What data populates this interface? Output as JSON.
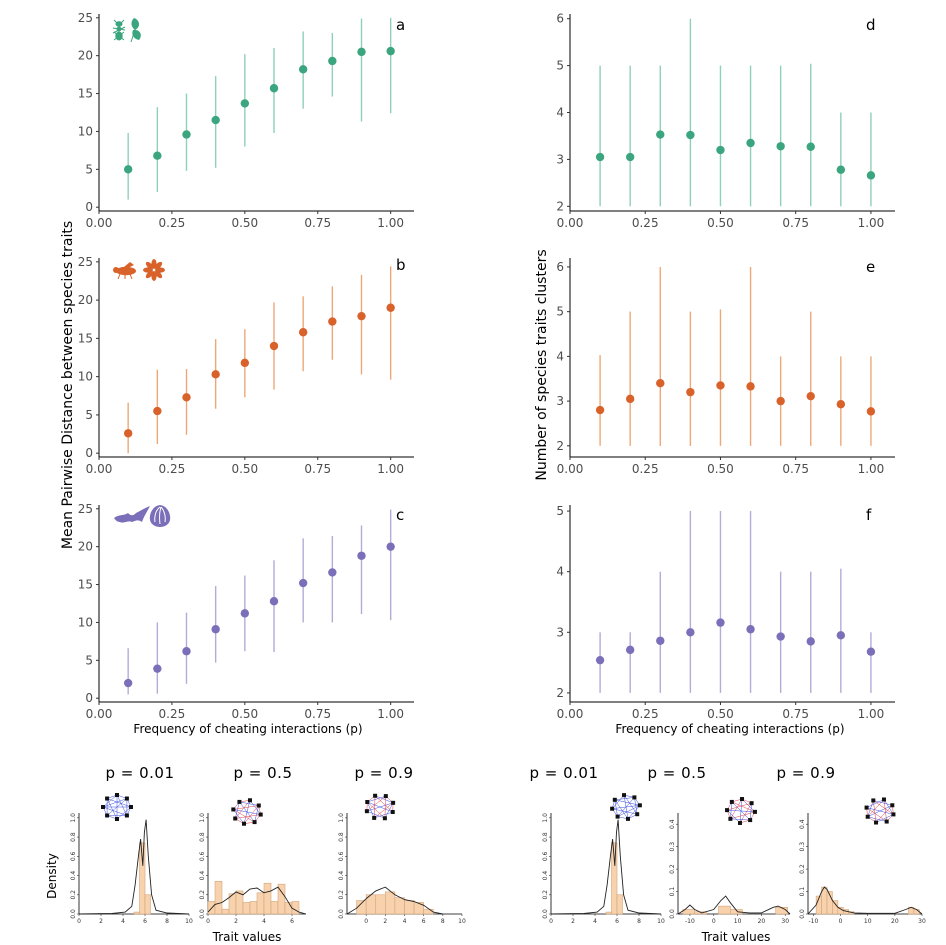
{
  "colors": {
    "green": "#3aa57e",
    "orange": "#d9622b",
    "purple": "#7b6fb9",
    "green_bar": "#8fd0b8",
    "orange_bar": "#eea878",
    "purple_bar": "#b3abd8",
    "hist_fill": "#f8d2ad",
    "hist_stroke": "#d2a57c"
  },
  "labels": {
    "y_left": "Mean Pairwise Distance between species traits",
    "y_right": "Number of species traits clusters",
    "x_left": "Frequency of cheating interactions (p)",
    "x_right": "Frequency of cheating interactions (p)",
    "density": "Density",
    "trait_left": "Trait values",
    "trait_right": "Trait values"
  },
  "icons": [
    "ant-icon",
    "leaf-icon",
    "bee-icon",
    "flower-icon",
    "bat-icon",
    "fig-icon"
  ],
  "chart_data": [
    {
      "type": "scatter",
      "panel": "a",
      "color": "green",
      "x": [
        0.1,
        0.2,
        0.3,
        0.4,
        0.5,
        0.6,
        0.7,
        0.8,
        0.9,
        1.0
      ],
      "y": [
        5.0,
        6.8,
        9.6,
        11.5,
        13.7,
        15.7,
        18.2,
        19.3,
        20.5,
        20.6
      ],
      "lo": [
        1.0,
        2.0,
        4.8,
        5.2,
        8.0,
        9.8,
        13.0,
        14.6,
        11.3,
        12.4
      ],
      "hi": [
        9.8,
        13.2,
        15.0,
        17.3,
        20.2,
        21.0,
        23.2,
        23.0,
        24.9,
        25.0
      ],
      "xlim": [
        0,
        1.08
      ],
      "ylim": [
        -0.5,
        25.5
      ],
      "xticks": [
        "0.00",
        "0.25",
        "0.50",
        "0.75",
        "1.00"
      ],
      "yticks": [
        "0",
        "5",
        "10",
        "15",
        "20",
        "25"
      ]
    },
    {
      "type": "scatter",
      "panel": "d",
      "color": "green",
      "x": [
        0.1,
        0.2,
        0.3,
        0.4,
        0.5,
        0.6,
        0.7,
        0.8,
        0.9,
        1.0
      ],
      "y": [
        3.05,
        3.05,
        3.53,
        3.52,
        3.2,
        3.35,
        3.28,
        3.27,
        2.78,
        2.66
      ],
      "lo": [
        2,
        2,
        2,
        2,
        2,
        2,
        2,
        2,
        2,
        2
      ],
      "hi": [
        5,
        5,
        5,
        6,
        5,
        5,
        5,
        5.04,
        4,
        4
      ],
      "xlim": [
        0,
        1.08
      ],
      "ylim": [
        1.9,
        6.1
      ],
      "xticks": [
        "0.00",
        "0.25",
        "0.50",
        "0.75",
        "1.00"
      ],
      "yticks": [
        "2",
        "3",
        "4",
        "5",
        "6"
      ]
    },
    {
      "type": "scatter",
      "panel": "b",
      "color": "orange",
      "x": [
        0.1,
        0.2,
        0.3,
        0.4,
        0.5,
        0.6,
        0.7,
        0.8,
        0.9,
        1.0
      ],
      "y": [
        2.6,
        5.5,
        7.3,
        10.3,
        11.8,
        14.0,
        15.8,
        17.2,
        17.9,
        19.0
      ],
      "lo": [
        0.0,
        1.2,
        2.4,
        5.8,
        7.3,
        8.3,
        10.7,
        12.2,
        10.3,
        9.6
      ],
      "hi": [
        6.6,
        10.9,
        11.0,
        14.9,
        16.2,
        19.7,
        20.5,
        21.8,
        23.3,
        24.4
      ],
      "xlim": [
        0,
        1.08
      ],
      "ylim": [
        -0.5,
        25.5
      ],
      "xticks": [
        "0.00",
        "0.25",
        "0.50",
        "0.75",
        "1.00"
      ],
      "yticks": [
        "0",
        "5",
        "10",
        "15",
        "20",
        "25"
      ]
    },
    {
      "type": "scatter",
      "panel": "e",
      "color": "orange",
      "x": [
        0.1,
        0.2,
        0.3,
        0.4,
        0.5,
        0.6,
        0.7,
        0.8,
        0.9,
        1.0
      ],
      "y": [
        2.8,
        3.05,
        3.4,
        3.2,
        3.35,
        3.33,
        3.0,
        3.11,
        2.93,
        2.77
      ],
      "lo": [
        2,
        2,
        2,
        2,
        2,
        2,
        2,
        2,
        2,
        2
      ],
      "hi": [
        4.03,
        5,
        6,
        5,
        5.05,
        6,
        4,
        5,
        4,
        4
      ],
      "xlim": [
        0,
        1.08
      ],
      "ylim": [
        1.75,
        6.2
      ],
      "xticks": [
        "0.00",
        "0.25",
        "0.50",
        "0.75",
        "1.00"
      ],
      "yticks": [
        "2",
        "3",
        "4",
        "5",
        "6"
      ]
    },
    {
      "type": "scatter",
      "panel": "c",
      "color": "purple",
      "x": [
        0.1,
        0.2,
        0.3,
        0.4,
        0.5,
        0.6,
        0.7,
        0.8,
        0.9,
        1.0
      ],
      "y": [
        2.0,
        3.9,
        6.2,
        9.1,
        11.2,
        12.8,
        15.2,
        16.6,
        18.8,
        20.0
      ],
      "lo": [
        0.5,
        0.6,
        1.9,
        4.7,
        6.2,
        6.1,
        10.0,
        10.0,
        11.1,
        10.3
      ],
      "hi": [
        6.6,
        10.0,
        11.3,
        14.8,
        16.2,
        18.2,
        21.1,
        21.4,
        22.8,
        24.9
      ],
      "xlim": [
        0,
        1.08
      ],
      "ylim": [
        -0.5,
        25.5
      ],
      "xticks": [
        "0.00",
        "0.25",
        "0.50",
        "0.75",
        "1.00"
      ],
      "yticks": [
        "0",
        "5",
        "10",
        "15",
        "20",
        "25"
      ]
    },
    {
      "type": "scatter",
      "panel": "f",
      "color": "purple",
      "x": [
        0.1,
        0.2,
        0.3,
        0.4,
        0.5,
        0.6,
        0.7,
        0.8,
        0.9,
        1.0
      ],
      "y": [
        2.54,
        2.71,
        2.86,
        3.0,
        3.16,
        3.05,
        2.93,
        2.85,
        2.95,
        2.68
      ],
      "lo": [
        2,
        2,
        2,
        2,
        2,
        2,
        2,
        2,
        2,
        2
      ],
      "hi": [
        3,
        3,
        4,
        5,
        5,
        5,
        4,
        4,
        4.05,
        3
      ],
      "xlim": [
        0,
        1.08
      ],
      "ylim": [
        1.85,
        5.1
      ],
      "xticks": [
        "0.00",
        "0.25",
        "0.50",
        "0.75",
        "1.00"
      ],
      "yticks": [
        "2",
        "3",
        "4",
        "5"
      ]
    },
    {
      "type": "bar",
      "title": "p = 0.01",
      "group": "left",
      "xlim": [
        0,
        10
      ],
      "ylim": [
        0,
        1.05
      ],
      "xticks": [
        "0",
        "2",
        "4",
        "6",
        "8",
        "10"
      ],
      "yticks": [
        "0.0",
        "0.2",
        "0.4",
        "0.6",
        "0.8",
        "1.0"
      ],
      "bins": [
        5.0,
        5.5,
        6.0
      ],
      "binwidth": 0.5,
      "values": [
        0.02,
        0.74,
        0.2
      ],
      "curve_x": [
        0,
        3,
        4.2,
        4.8,
        5.1,
        5.4,
        5.6,
        5.8,
        5.95,
        6.1,
        6.3,
        6.6,
        7,
        8,
        10
      ],
      "curve_y": [
        0,
        0.005,
        0.02,
        0.08,
        0.3,
        0.6,
        0.78,
        0.5,
        0.85,
        0.98,
        0.6,
        0.2,
        0.04,
        0.01,
        0
      ]
    },
    {
      "type": "bar",
      "title": "p = 0.5",
      "group": "left",
      "xlim": [
        0,
        7
      ],
      "ylim": [
        0,
        1.05
      ],
      "xticks": [
        "0",
        "2",
        "4",
        "6"
      ],
      "yticks": [
        "0.0",
        "0.2",
        "0.4",
        "0.6",
        "0.8",
        "1.0"
      ],
      "bins": [
        0,
        0.5,
        1,
        1.5,
        2,
        2.5,
        3,
        3.5,
        4,
        4.5,
        5,
        5.5,
        6,
        6.5
      ],
      "binwidth": 0.5,
      "values": [
        0.13,
        0.34,
        0.05,
        0.21,
        0.24,
        0.12,
        0.13,
        0.22,
        0.32,
        0.13,
        0.31,
        0.12,
        0.13,
        0
      ],
      "curve_x": [
        0,
        0.5,
        1,
        1.5,
        2,
        2.5,
        3,
        3.5,
        4,
        4.5,
        5,
        5.5,
        6,
        6.5,
        7
      ],
      "curve_y": [
        0.02,
        0.1,
        0.12,
        0.17,
        0.23,
        0.2,
        0.26,
        0.27,
        0.22,
        0.24,
        0.28,
        0.18,
        0.06,
        0.02,
        0
      ]
    },
    {
      "type": "bar",
      "title": "p = 0.9",
      "group": "left",
      "xlim": [
        -2,
        10
      ],
      "ylim": [
        0,
        1.05
      ],
      "xticks": [
        "0",
        "2",
        "4",
        "6",
        "8",
        "10"
      ],
      "yticks": [
        "0.0",
        "0.2",
        "0.4",
        "0.6",
        "0.8",
        "1.0"
      ],
      "bins": [
        -1,
        0,
        1,
        2,
        3,
        4,
        5,
        6
      ],
      "binwidth": 1,
      "values": [
        0.14,
        0.2,
        0.2,
        0.23,
        0.17,
        0.14,
        0.12,
        0.05
      ],
      "curve_x": [
        -2,
        -1,
        0,
        1,
        2,
        3,
        4,
        5,
        6,
        7,
        8
      ],
      "curve_y": [
        0,
        0.06,
        0.16,
        0.24,
        0.28,
        0.2,
        0.15,
        0.13,
        0.09,
        0.02,
        0
      ]
    },
    {
      "type": "bar",
      "title": "p = 0.01",
      "group": "right",
      "xlim": [
        0,
        10
      ],
      "ylim": [
        0,
        1.05
      ],
      "xticks": [
        "0",
        "2",
        "4",
        "6",
        "8",
        "10"
      ],
      "yticks": [
        "0.0",
        "0.2",
        "0.4",
        "0.6",
        "0.8",
        "1.0"
      ],
      "bins": [
        5.0,
        5.5,
        6.0
      ],
      "binwidth": 0.5,
      "values": [
        0.02,
        0.74,
        0.2
      ],
      "curve_x": [
        0,
        3,
        4.2,
        4.8,
        5.1,
        5.4,
        5.6,
        5.8,
        5.95,
        6.1,
        6.3,
        6.6,
        7,
        8,
        10
      ],
      "curve_y": [
        0,
        0.005,
        0.02,
        0.08,
        0.3,
        0.6,
        0.78,
        0.5,
        0.85,
        0.98,
        0.6,
        0.2,
        0.04,
        0.01,
        0
      ]
    },
    {
      "type": "bar",
      "title": "p = 0.5",
      "group": "right",
      "xlim": [
        -15,
        32
      ],
      "ylim": [
        0,
        0.45
      ],
      "xticks": [
        "-10",
        "0",
        "10",
        "20",
        "30"
      ],
      "yticks": [
        "0.0",
        "0.1",
        "0.2",
        "0.3",
        "0.4"
      ],
      "bins": [
        -13,
        -8,
        2,
        7,
        26
      ],
      "binwidth": 5,
      "values": [
        0.02,
        0.01,
        0.035,
        0.02,
        0.03
      ],
      "curve_x": [
        -15,
        -12,
        -10,
        -8,
        -5,
        0,
        3,
        5,
        7,
        10,
        15,
        20,
        25,
        27,
        30,
        32
      ],
      "curve_y": [
        0,
        0.02,
        0.04,
        0.02,
        0.005,
        0.02,
        0.06,
        0.08,
        0.05,
        0.01,
        0.005,
        0.005,
        0.03,
        0.035,
        0.02,
        0
      ]
    },
    {
      "type": "bar",
      "title": "p = 0.9",
      "group": "right",
      "xlim": [
        -12,
        30
      ],
      "ylim": [
        0,
        0.45
      ],
      "xticks": [
        "-10",
        "0",
        "10",
        "20",
        "30"
      ],
      "yticks": [
        "0.0",
        "0.1",
        "0.2",
        "0.3",
        "0.4"
      ],
      "bins": [
        -9,
        -7,
        -5,
        -3,
        -1,
        1,
        3,
        25,
        27
      ],
      "binwidth": 2,
      "values": [
        0.08,
        0.12,
        0.1,
        0.06,
        0.03,
        0.02,
        0.01,
        0.03,
        0.02
      ],
      "curve_x": [
        -12,
        -9,
        -7,
        -6,
        -5,
        -3,
        -1,
        1,
        5,
        10,
        20,
        24,
        26,
        28,
        30
      ],
      "curve_y": [
        0,
        0.04,
        0.1,
        0.12,
        0.11,
        0.06,
        0.03,
        0.015,
        0.005,
        0.003,
        0.003,
        0.02,
        0.03,
        0.02,
        0
      ]
    }
  ]
}
